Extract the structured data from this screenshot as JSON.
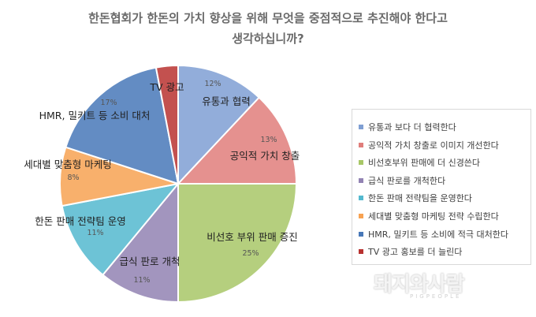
{
  "chart_data": {
    "type": "pie",
    "title_lines": [
      "한돈협회가 한돈의 가치 향상을 위해 무엇을 중점적으로 추진해야 한다고",
      "생각하십니까?"
    ],
    "slices": [
      {
        "label": "유통과 협력",
        "legend": "유통과 보다 더 협력한다",
        "value": 12,
        "pct_label": "12%",
        "color": "#7f9fd3"
      },
      {
        "label": "공익적 가치 창출",
        "legend": "공익적 가치 창출로 이미지 개선한다",
        "value": 13,
        "pct_label": "13%",
        "color": "#e07e7b"
      },
      {
        "label": "비선호 부위 판매 증진",
        "legend": "비선호부위 판매에 더 신경쓴다",
        "value": 25,
        "pct_label": "25%",
        "color": "#a8c767"
      },
      {
        "label": "급식 판로 개척",
        "legend": "급식 판로를 개척한다",
        "value": 11,
        "pct_label": "11%",
        "color": "#9283b3"
      },
      {
        "label": "한돈 판매 전략팀 운영",
        "legend": "한돈 판매 전략팀을 운영한다",
        "value": 11,
        "pct_label": "11%",
        "color": "#54b9cf"
      },
      {
        "label": "세대별 맞춤형 마케팅",
        "legend": "세대별 맞춤형 마케팅 전략 수립한다",
        "value": 8,
        "pct_label": "8%",
        "color": "#f7a252"
      },
      {
        "label": "HMR, 밀키트 등 소비 대처",
        "legend": "HMR, 밀키트 등 소비에 적극 대처한다",
        "value": 17,
        "pct_label": "17%",
        "color": "#4878b8"
      },
      {
        "label": "TV 광고",
        "legend": "TV 광고 홍보를 더 늘린다",
        "value": 3,
        "pct_label": "",
        "color": "#b83230"
      }
    ]
  },
  "watermark": {
    "text": "돼지와사람",
    "sub": "PIGPEOPLE"
  }
}
